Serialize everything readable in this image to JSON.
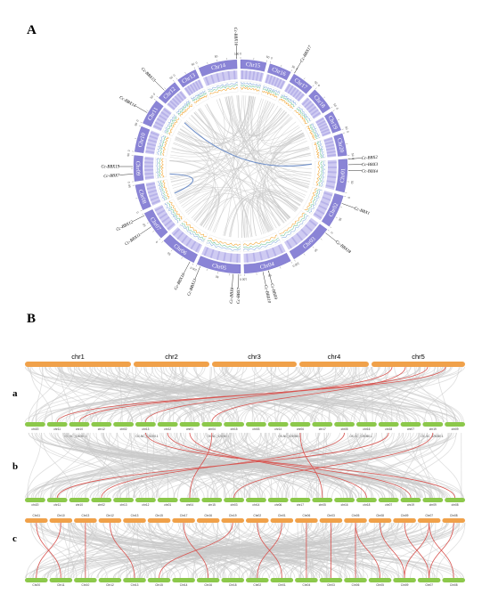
{
  "panels": {
    "a_label": "A",
    "b_label": "B"
  },
  "rows": {
    "a": "a",
    "b": "b",
    "c": "c"
  },
  "circos": {
    "chromosomes": [
      {
        "name": "Chr14",
        "start": -23,
        "end": -2
      },
      {
        "name": "Chr15",
        "start": 0,
        "end": 14
      },
      {
        "name": "Chr16",
        "start": 16,
        "end": 28
      },
      {
        "name": "Chr17",
        "start": 30,
        "end": 42
      },
      {
        "name": "Chr18",
        "start": 44,
        "end": 57
      },
      {
        "name": "Chr19",
        "start": 59,
        "end": 70
      },
      {
        "name": "Chr20",
        "start": 72,
        "end": 84
      },
      {
        "name": "Chr01",
        "start": 86,
        "end": 104
      },
      {
        "name": "Chr02",
        "start": 106,
        "end": 124
      },
      {
        "name": "Chr03",
        "start": 126,
        "end": 150
      },
      {
        "name": "Chr04",
        "start": 152,
        "end": 178
      },
      {
        "name": "Chr05",
        "start": 180,
        "end": 204
      },
      {
        "name": "Chr06",
        "start": 206,
        "end": 226
      },
      {
        "name": "Chr07",
        "start": 228,
        "end": 244
      },
      {
        "name": "Chr08",
        "start": 246,
        "end": 260
      },
      {
        "name": "Chr09",
        "start": 262,
        "end": 276
      },
      {
        "name": "Chr10",
        "start": 278,
        "end": 292
      },
      {
        "name": "Chr11",
        "start": 294,
        "end": 308
      },
      {
        "name": "Chr12",
        "start": 310,
        "end": 322
      },
      {
        "name": "Chr13",
        "start": 324,
        "end": 335
      }
    ],
    "genes": [
      {
        "name": "Cc-BBX16",
        "angle": 358,
        "side": "top"
      },
      {
        "name": "Cc-BBX17",
        "angle": 30,
        "side": "right"
      },
      {
        "name": "Cc-BBX2",
        "angle": 86,
        "side": "right"
      },
      {
        "name": "Cc-BBX3",
        "angle": 89,
        "side": "right"
      },
      {
        "name": "Cc-BBX4",
        "angle": 92,
        "side": "right"
      },
      {
        "name": "Cc-BBX1",
        "angle": 110,
        "side": "right"
      },
      {
        "name": "Cc-BBX18",
        "angle": 128,
        "side": "right"
      },
      {
        "name": "Cc-BBX9",
        "angle": 165,
        "side": "bottom"
      },
      {
        "name": "Cc-BBX10",
        "angle": 168,
        "side": "bottom"
      },
      {
        "name": "Cc-BBX7",
        "angle": 181,
        "side": "bottom"
      },
      {
        "name": "Cc-BBX8",
        "angle": 184,
        "side": "bottom"
      },
      {
        "name": "Cc-BBX13",
        "angle": 202,
        "side": "left"
      },
      {
        "name": "Cc-BBX16",
        "angle": 208,
        "side": "left"
      },
      {
        "name": "Cc-BBX11",
        "angle": 236,
        "side": "left"
      },
      {
        "name": "Cc-BBX12",
        "angle": 243,
        "side": "left"
      },
      {
        "name": "Cc-BBX7",
        "angle": 266,
        "side": "left"
      },
      {
        "name": "Cc-BBX19",
        "angle": 270,
        "side": "left"
      },
      {
        "name": "Cc-BBX14",
        "angle": 300,
        "side": "left"
      },
      {
        "name": "Cc-BBX15",
        "angle": 315,
        "side": "left"
      }
    ],
    "tick_labels": [
      "0",
      "50",
      "100",
      "150",
      "200",
      "250"
    ]
  },
  "synteny": {
    "top_chromosomes": [
      "chr1",
      "chr2",
      "chr3",
      "chr4",
      "chr5"
    ],
    "row_a_bottom": [
      "chr20",
      "chr11",
      "chr10",
      "chr12",
      "chr02",
      "chr13",
      "chr12",
      "chr01",
      "chr04",
      "chr15",
      "chr03",
      "chr14",
      "chr06",
      "chr17",
      "chr05",
      "chr16",
      "chr18",
      "chr07",
      "chr19",
      "chr09"
    ],
    "row_b_bottom_labels": [
      "OX-NC_026050.1",
      "OX-NC_026050.1",
      "OX-NC_026050.1",
      "OX-NC_026050.1",
      "OX-NC_026050.1",
      "OX-NC_026050.1"
    ],
    "row_b_bottom": [
      "chr20",
      "chr11",
      "chr10",
      "chr02",
      "chr13",
      "chr12",
      "chr01",
      "chr04",
      "chr15",
      "chr03",
      "chr14",
      "chr06",
      "chr17",
      "chr05",
      "chr16",
      "chr18",
      "chr07",
      "chr19",
      "chr09",
      "chr08"
    ],
    "row_c_top": [
      "Chr11",
      "Chr10",
      "Chr13",
      "Chr12",
      "Chr13",
      "Chr15",
      "Chr17",
      "Chr16",
      "Chr19",
      "Chr02",
      "Chr01",
      "Chr06",
      "Chr03",
      "Chr05",
      "Chr08",
      "Chr09",
      "Chr07",
      "Chr08"
    ],
    "row_c_bottom": [
      "Chr20",
      "Chr11",
      "Chr10",
      "Chr12",
      "Chr13",
      "Chr15",
      "Chr14",
      "Chr16",
      "Chr18",
      "Chr02",
      "Chr01",
      "Chr04",
      "Chr03",
      "Chr06",
      "Chr05",
      "Chr09",
      "Chr07",
      "Chr08"
    ]
  },
  "colors": {
    "ideogram": "#8a84d6",
    "ideogram_light": "#cfcbf2",
    "heat_light": "#e9e7fb",
    "line_orange": "#f2a93b",
    "line_green": "#7cc8a3",
    "line_blue": "#8fb2e0",
    "link_grey": "#c9c9c9",
    "link_highlight": "#6f8fc9",
    "bar_orange": "#f0a14a",
    "bar_green": "#8cc84b",
    "red_link": "#d9534f"
  }
}
